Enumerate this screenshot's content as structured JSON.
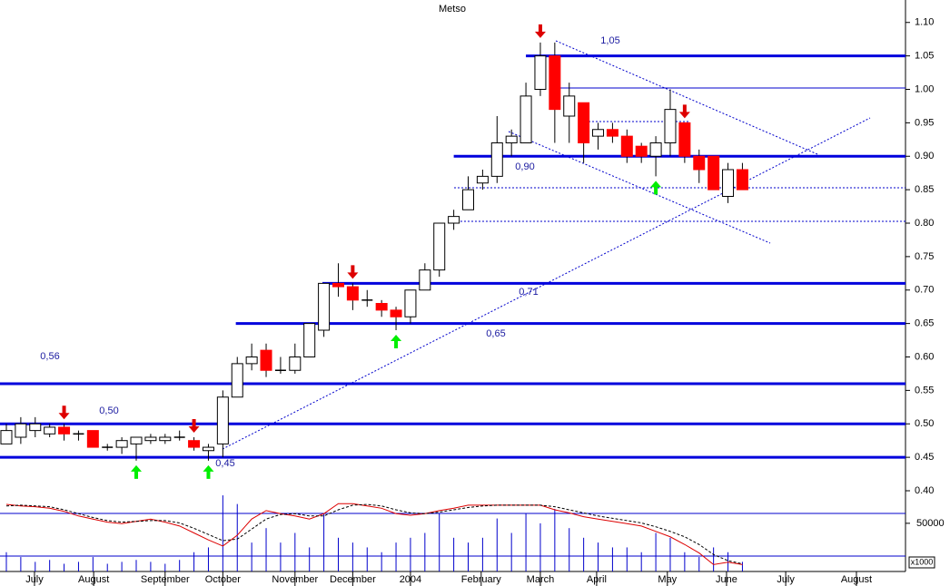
{
  "chart_data": {
    "type": "candlestick",
    "title": "Metso",
    "xlim": [
      -0.44,
      62.3
    ],
    "xticks": [
      {
        "value": 1.95,
        "label": "July"
      },
      {
        "value": 6.05,
        "label": "August"
      },
      {
        "value": 11.0,
        "label": "September"
      },
      {
        "value": 15.0,
        "label": "October"
      },
      {
        "value": 20.0,
        "label": "November"
      },
      {
        "value": 24.0,
        "label": "December"
      },
      {
        "value": 28.0,
        "label": "2004"
      },
      {
        "value": 32.9,
        "label": "February"
      },
      {
        "value": 37.0,
        "label": "March"
      },
      {
        "value": 40.9,
        "label": "April"
      },
      {
        "value": 45.8,
        "label": "May"
      },
      {
        "value": 49.9,
        "label": "June"
      },
      {
        "value": 54.0,
        "label": "July"
      },
      {
        "value": 58.9,
        "label": "August"
      }
    ],
    "ylim": [
      0.4,
      1.12
    ],
    "yticks": [
      {
        "value": 0.4,
        "label": "0.40"
      },
      {
        "value": 0.45,
        "label": "0.45"
      },
      {
        "value": 0.5,
        "label": "0.50"
      },
      {
        "value": 0.55,
        "label": "0.55"
      },
      {
        "value": 0.6,
        "label": "0.60"
      },
      {
        "value": 0.65,
        "label": "0.65"
      },
      {
        "value": 0.7,
        "label": "0.70"
      },
      {
        "value": 0.75,
        "label": "0.75"
      },
      {
        "value": 0.8,
        "label": "0.80"
      },
      {
        "value": 0.85,
        "label": "0.85"
      },
      {
        "value": 0.9,
        "label": "0.90"
      },
      {
        "value": 0.95,
        "label": "0.95"
      },
      {
        "value": 1.0,
        "label": "1.00"
      },
      {
        "value": 1.05,
        "label": "1.05"
      },
      {
        "value": 1.1,
        "label": "1.10"
      }
    ],
    "open": [
      0.47,
      0.48,
      0.49,
      0.485,
      0.495,
      0.485,
      0.49,
      0.465,
      0.465,
      0.47,
      0.475,
      0.475,
      0.48,
      0.475,
      0.46,
      0.47,
      0.54,
      0.59,
      0.61,
      0.58,
      0.58,
      0.6,
      0.64,
      0.71,
      0.705,
      0.685,
      0.68,
      0.67,
      0.66,
      0.7,
      0.73,
      0.8,
      0.82,
      0.86,
      0.87,
      0.92,
      0.92,
      1.0,
      1.05,
      0.96,
      0.98,
      0.93,
      0.94,
      0.93,
      0.915,
      0.9,
      0.92,
      0.95,
      0.9,
      0.9,
      0.84,
      0.88
    ],
    "high": [
      0.5,
      0.51,
      0.51,
      0.5,
      0.5,
      0.49,
      0.49,
      0.47,
      0.48,
      0.48,
      0.485,
      0.485,
      0.49,
      0.48,
      0.47,
      0.55,
      0.6,
      0.62,
      0.62,
      0.6,
      0.62,
      0.65,
      0.71,
      0.74,
      0.71,
      0.7,
      0.685,
      0.675,
      0.7,
      0.74,
      0.8,
      0.82,
      0.87,
      0.88,
      0.96,
      0.94,
      1.01,
      1.07,
      1.07,
      1.01,
      0.98,
      0.95,
      0.95,
      0.94,
      0.92,
      0.93,
      1.0,
      0.95,
      0.91,
      0.9,
      0.89,
      0.89
    ],
    "low": [
      0.47,
      0.47,
      0.48,
      0.48,
      0.475,
      0.475,
      0.465,
      0.46,
      0.455,
      0.445,
      0.47,
      0.47,
      0.475,
      0.46,
      0.445,
      0.45,
      0.54,
      0.58,
      0.57,
      0.575,
      0.575,
      0.6,
      0.63,
      0.69,
      0.67,
      0.675,
      0.66,
      0.64,
      0.65,
      0.7,
      0.72,
      0.79,
      0.82,
      0.85,
      0.86,
      0.9,
      0.92,
      0.99,
      0.92,
      0.92,
      0.89,
      0.91,
      0.92,
      0.89,
      0.89,
      0.87,
      0.9,
      0.89,
      0.86,
      0.85,
      0.83,
      0.85
    ],
    "close": [
      0.49,
      0.5,
      0.5,
      0.495,
      0.485,
      0.485,
      0.465,
      0.465,
      0.475,
      0.48,
      0.48,
      0.48,
      0.48,
      0.465,
      0.465,
      0.54,
      0.59,
      0.6,
      0.58,
      0.58,
      0.6,
      0.65,
      0.71,
      0.705,
      0.685,
      0.685,
      0.67,
      0.66,
      0.7,
      0.73,
      0.8,
      0.81,
      0.85,
      0.87,
      0.92,
      0.93,
      0.99,
      1.05,
      0.97,
      0.99,
      0.92,
      0.94,
      0.93,
      0.9,
      0.9,
      0.92,
      0.97,
      0.9,
      0.88,
      0.85,
      0.88,
      0.85
    ],
    "up_color": "#ffffff",
    "down_color": "#ff0000",
    "levels": [
      {
        "value": 1.05,
        "label": "1,05",
        "from": 36
      },
      {
        "value": 0.9,
        "label": "0,90",
        "from": 31
      },
      {
        "value": 0.71,
        "label": "0,71",
        "from": 21.9
      },
      {
        "value": 0.65,
        "label": "0,65",
        "from": 15.9
      },
      {
        "value": 0.56,
        "label": "0,56",
        "from": -0.44
      },
      {
        "value": 0.5,
        "label": "0,50",
        "from": -0.44
      },
      {
        "value": 0.45,
        "label": "0,45",
        "from": -0.44
      }
    ],
    "level_color": "#0000dd",
    "sell_signals": [
      4,
      13,
      24,
      37,
      47
    ],
    "buy_signals": [
      9,
      14,
      27,
      45
    ],
    "indicator_ylim": [
      0,
      100
    ],
    "indicator_series": [
      {
        "color": "#dd0000",
        "values": [
          87,
          85,
          84,
          82,
          78,
          72,
          68,
          64,
          62,
          65,
          68,
          64,
          59,
          50,
          41,
          33,
          47,
          68,
          79,
          75,
          72,
          68,
          75,
          88,
          88,
          85,
          82,
          75,
          73,
          75,
          79,
          82,
          86,
          86,
          86,
          86,
          86,
          86,
          80,
          76,
          71,
          68,
          65,
          62,
          59,
          52,
          45,
          35,
          24,
          9,
          12,
          9
        ]
      },
      {
        "color": "#000000",
        "dashed": true,
        "values": [
          85,
          86,
          85,
          84,
          80,
          75,
          70,
          66,
          64,
          65,
          66,
          66,
          63,
          56,
          48,
          40,
          42,
          55,
          68,
          74,
          75,
          72,
          72,
          80,
          86,
          87,
          85,
          80,
          76,
          75,
          77,
          80,
          83,
          85,
          86,
          86,
          86,
          86,
          84,
          80,
          76,
          72,
          69,
          66,
          63,
          58,
          52,
          45,
          35,
          22,
          14,
          10
        ]
      }
    ],
    "volume": [
      20000,
      15000,
      10000,
      12000,
      8000,
      10000,
      15000,
      8000,
      10000,
      12000,
      10000,
      8000,
      12000,
      20000,
      25000,
      79000,
      70000,
      30000,
      45000,
      30000,
      40000,
      25000,
      60000,
      35000,
      30000,
      25000,
      20000,
      30000,
      35000,
      40000,
      60000,
      35000,
      30000,
      35000,
      55000,
      40000,
      60000,
      50000,
      65000,
      45000,
      35000,
      30000,
      25000,
      25000,
      20000,
      40000,
      35000,
      20000,
      15000,
      25000,
      20000,
      10000
    ],
    "volume_ylim": [
      0,
      80000
    ],
    "volume_ticks": [
      50000
    ],
    "volume_unit": "x1000",
    "volume_color": "#0000cc"
  }
}
